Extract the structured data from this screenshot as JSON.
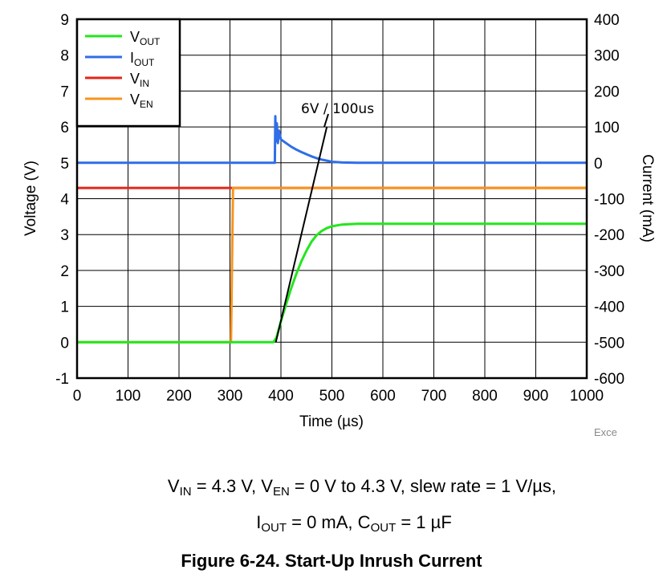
{
  "chart_data": {
    "type": "line",
    "title": "",
    "xlabel": "Time (µs)",
    "ylabel": "Voltage (V)",
    "y2label": "Current (mA)",
    "xlim": [
      0,
      1000
    ],
    "ylim": [
      -1,
      9
    ],
    "y2lim": [
      -600,
      400
    ],
    "x_ticks": [
      "0",
      "100",
      "200",
      "300",
      "400",
      "500",
      "600",
      "700",
      "800",
      "900",
      "1000"
    ],
    "y_ticks": [
      "-1",
      "0",
      "1",
      "2",
      "3",
      "4",
      "5",
      "6",
      "7",
      "8",
      "9"
    ],
    "y2_ticks": [
      "-600",
      "-500",
      "-400",
      "-300",
      "-200",
      "-100",
      "0",
      "100",
      "200",
      "300",
      "400"
    ],
    "grid": true,
    "legend_position": "top-left",
    "series": [
      {
        "name": "V_OUT",
        "label_main": "V",
        "label_sub": "OUT",
        "color": "#22e61e",
        "axis": "left",
        "x": [
          0,
          385,
          391,
          400,
          410,
          420,
          430,
          440,
          450,
          460,
          470,
          480,
          490,
          500,
          520,
          550,
          600,
          700,
          1000
        ],
        "y": [
          0,
          0,
          0.12,
          0.58,
          1.05,
          1.5,
          1.9,
          2.25,
          2.55,
          2.8,
          2.98,
          3.1,
          3.18,
          3.23,
          3.28,
          3.3,
          3.3,
          3.3,
          3.3
        ]
      },
      {
        "name": "I_OUT",
        "label_main": "I",
        "label_sub": "OUT",
        "color": "#2f6ee8",
        "axis": "right",
        "x": [
          0,
          388,
          389,
          390,
          392,
          394,
          396,
          400,
          410,
          420,
          430,
          440,
          450,
          460,
          470,
          480,
          490,
          500,
          520,
          550,
          1000
        ],
        "y": [
          0,
          0,
          130,
          60,
          110,
          55,
          90,
          65,
          55,
          45,
          37,
          30,
          24,
          18,
          13,
          9,
          6,
          3,
          1,
          0,
          0
        ]
      },
      {
        "name": "V_IN",
        "label_main": "V",
        "label_sub": "IN",
        "color": "#e32619",
        "axis": "left",
        "x": [
          0,
          1000
        ],
        "y": [
          4.3,
          4.3
        ]
      },
      {
        "name": "V_EN",
        "label_main": "V",
        "label_sub": "EN",
        "color": "#f7941e",
        "axis": "left",
        "x": [
          0,
          302,
          306,
          1000
        ],
        "y": [
          0,
          0,
          4.3,
          4.3
        ]
      }
    ],
    "annotation": {
      "text": "6V / 100us",
      "line_x": [
        390,
        490
      ],
      "line_y": [
        0,
        6
      ]
    },
    "watermark": "Exce"
  },
  "caption": {
    "line1": [
      {
        "t": "V"
      },
      {
        "sub": "IN"
      },
      {
        "t": " = 4.3 V, V"
      },
      {
        "sub": "EN"
      },
      {
        "t": " = 0 V to 4.3 V, slew rate = 1 V/µs,"
      }
    ],
    "line2": [
      {
        "t": "I"
      },
      {
        "sub": "OUT"
      },
      {
        "t": " = 0 mA, C"
      },
      {
        "sub": "OUT"
      },
      {
        "t": " = 1 µF"
      }
    ],
    "figure_title": "Figure 6-24. Start-Up Inrush Current"
  }
}
